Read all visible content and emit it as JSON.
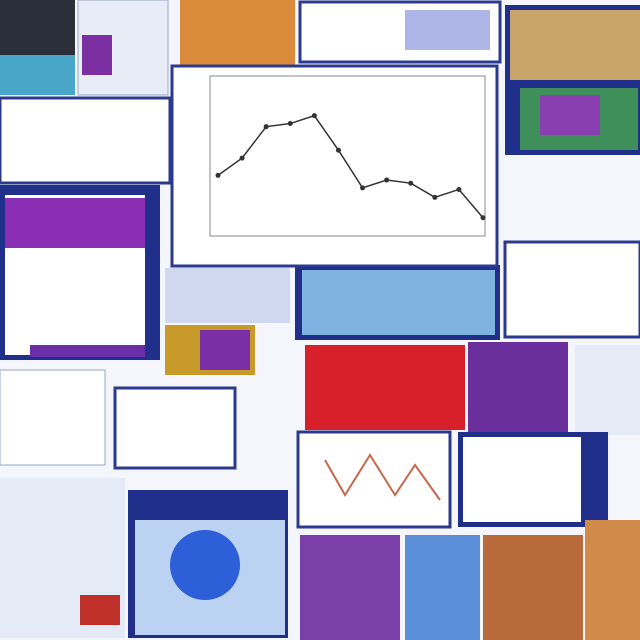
{
  "chart_data": {
    "type": "line",
    "categories": [
      null,
      null,
      null,
      null,
      null,
      null,
      null,
      null,
      null,
      null,
      null,
      null
    ],
    "values": [
      3.8,
      4.9,
      6.9,
      7.1,
      7.6,
      5.4,
      3.0,
      3.5,
      3.3,
      2.4,
      2.9,
      1.1
    ],
    "ylim": [
      0,
      10
    ],
    "color": "#333333"
  }
}
